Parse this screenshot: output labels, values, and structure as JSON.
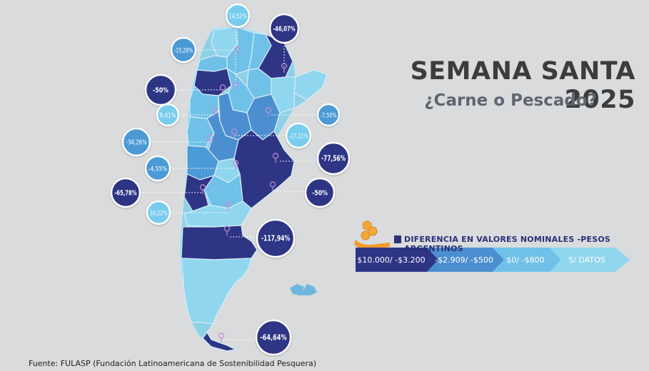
{
  "title": "SEMANA SANTA 2025",
  "subtitle": "¿Carne o Pescado?",
  "legend": {
    "title": "DIFERENCIA EN VALORES NOMINALES -PESOS ARGENTINOS",
    "items": [
      {
        "label": "$10.000/ -$3.200",
        "color": "#2e3585"
      },
      {
        "label": "-$2.909/ -$500",
        "color": "#4c8fd0"
      },
      {
        "label": "$0/ -$800",
        "color": "#6fc1e8"
      },
      {
        "label": "S/ DATOS",
        "color": "#8fd6ee"
      }
    ]
  },
  "source": "Fuente: FULASP (Fundación Latinoamericana de Sostenibilidad Pesquera)",
  "markers": [
    {
      "label": "14,52%",
      "category": "S/ DATOS",
      "style": "light"
    },
    {
      "label": "-46,07%",
      "category": "$10.000/ -$3.200",
      "style": "dark"
    },
    {
      "label": "-15,28%",
      "category": "$0/ -$800",
      "style": "mid"
    },
    {
      "label": "-50%",
      "category": "$10.000/ -$3.200",
      "style": "dark"
    },
    {
      "label": "9,41%",
      "category": "S/ DATOS",
      "style": "light"
    },
    {
      "label": "-7,50%",
      "category": "-$2.909/ -$500",
      "style": "mid"
    },
    {
      "label": "-17,11%",
      "category": "$0/ -$800",
      "style": "light"
    },
    {
      "label": "-34,26%",
      "category": "-$2.909/ -$500",
      "style": "mid"
    },
    {
      "label": "-77,56%",
      "category": "$10.000/ -$3.200",
      "style": "dark"
    },
    {
      "label": "-4,55%",
      "category": "-$2.909/ -$500",
      "style": "mid"
    },
    {
      "label": "-65,78%",
      "category": "$10.000/ -$3.200",
      "style": "dark"
    },
    {
      "label": "-50%",
      "category": "$10.000/ -$3.200",
      "style": "dark"
    },
    {
      "label": "10,22%",
      "category": "S/ DATOS",
      "style": "light"
    },
    {
      "label": "-117,94%",
      "category": "$10.000/ -$3.200",
      "style": "dark"
    },
    {
      "label": "-64,64%",
      "category": "$10.000/ -$3.200",
      "style": "dark"
    }
  ],
  "colors": {
    "dark": "#2e3585",
    "mid": "#4c9ad6",
    "light": "#78cdee",
    "pale": "#9fd9ec",
    "background": "#d9dbdd"
  }
}
